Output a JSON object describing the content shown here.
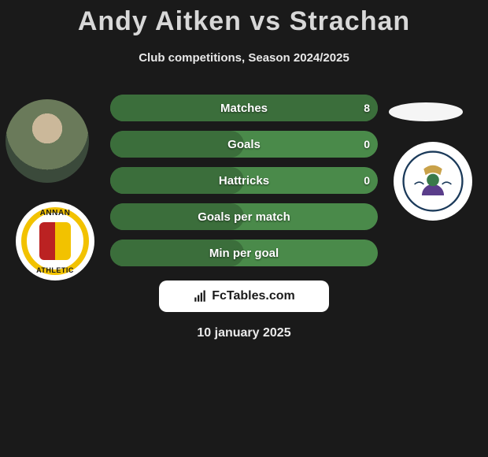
{
  "title": "Andy Aitken vs Strachan",
  "subtitle": "Club competitions, Season 2024/2025",
  "date": "10 january 2025",
  "footer_brand": "FcTables.com",
  "colors": {
    "bg": "#1a1a1a",
    "row_right": "#4a8a4a",
    "row_left_fill": "#3b6e3b",
    "title": "#d8d8d8",
    "text": "#ffffff"
  },
  "left_badge": {
    "top_text": "ANNAN",
    "bottom_text": "ATHLETIC"
  },
  "stats": [
    {
      "label": "Matches",
      "left_value": "8",
      "left_pct": 100
    },
    {
      "label": "Goals",
      "left_value": "0",
      "left_pct": 50
    },
    {
      "label": "Hattricks",
      "left_value": "0",
      "left_pct": 50
    },
    {
      "label": "Goals per match",
      "left_value": "",
      "left_pct": 50
    },
    {
      "label": "Min per goal",
      "left_value": "",
      "left_pct": 50
    }
  ]
}
